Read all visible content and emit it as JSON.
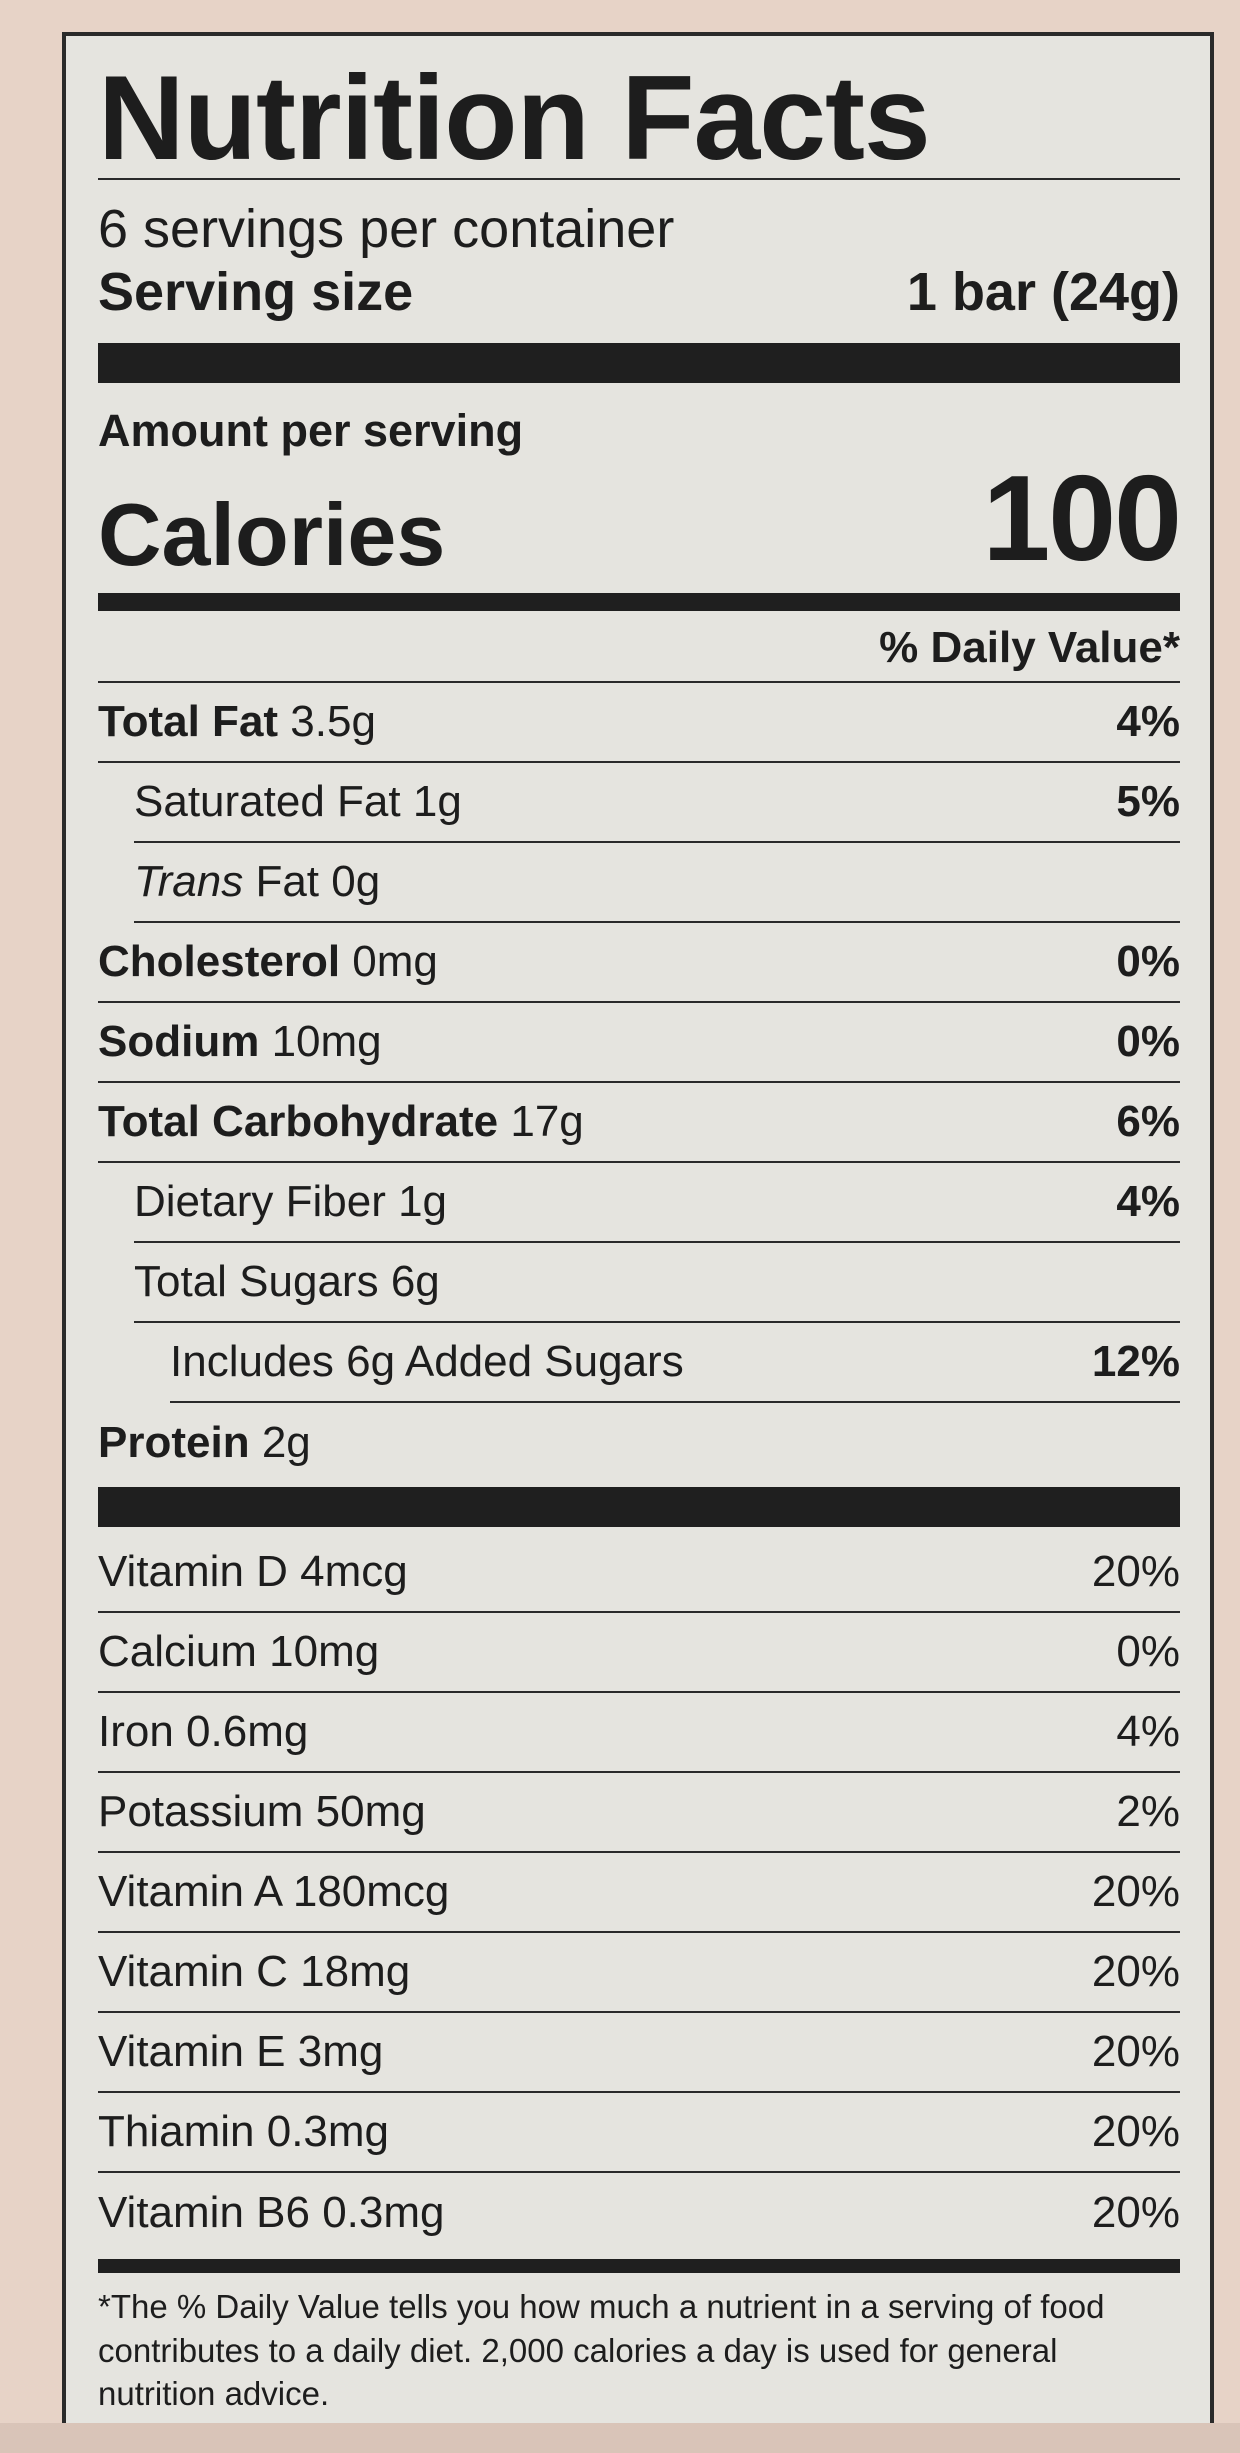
{
  "label": {
    "title": "Nutrition Facts",
    "servings_per_container": "6 servings per container",
    "serving_size_label": "Serving size",
    "serving_size_value": "1 bar (24g)",
    "amount_per_serving": "Amount per serving",
    "calories_label": "Calories",
    "calories_value": "100",
    "daily_value_header": "% Daily Value*",
    "nutrients": [
      {
        "name": "Total Fat",
        "amount": "3.5g",
        "dv": "4%"
      },
      {
        "name": "Saturated Fat",
        "amount": "1g",
        "dv": "5%"
      },
      {
        "prefix": "Trans",
        "name": "Fat",
        "amount": "0g",
        "dv": ""
      },
      {
        "name": "Cholesterol",
        "amount": "0mg",
        "dv": "0%"
      },
      {
        "name": "Sodium",
        "amount": "10mg",
        "dv": "0%"
      },
      {
        "name": "Total Carbohydrate",
        "amount": "17g",
        "dv": "6%"
      },
      {
        "name": "Dietary Fiber",
        "amount": "1g",
        "dv": "4%"
      },
      {
        "name": "Total Sugars",
        "amount": "6g",
        "dv": ""
      },
      {
        "name": "Includes 6g Added Sugars",
        "amount": "",
        "dv": "12%"
      },
      {
        "name": "Protein",
        "amount": "2g",
        "dv": ""
      }
    ],
    "vitamins": [
      {
        "text": "Vitamin D 4mcg",
        "dv": "20%"
      },
      {
        "text": "Calcium 10mg",
        "dv": "0%"
      },
      {
        "text": "Iron 0.6mg",
        "dv": "4%"
      },
      {
        "text": "Potassium 50mg",
        "dv": "2%"
      },
      {
        "text": "Vitamin A 180mcg",
        "dv": "20%"
      },
      {
        "text": "Vitamin C 18mg",
        "dv": "20%"
      },
      {
        "text": "Vitamin E 3mg",
        "dv": "20%"
      },
      {
        "text": "Thiamin 0.3mg",
        "dv": "20%"
      },
      {
        "text": "Vitamin B6 0.3mg",
        "dv": "20%"
      }
    ],
    "footnote": "*The % Daily Value tells you how much a nutrient in a serving of food contributes to a daily diet. 2,000 calories a day is used for general nutrition advice."
  }
}
